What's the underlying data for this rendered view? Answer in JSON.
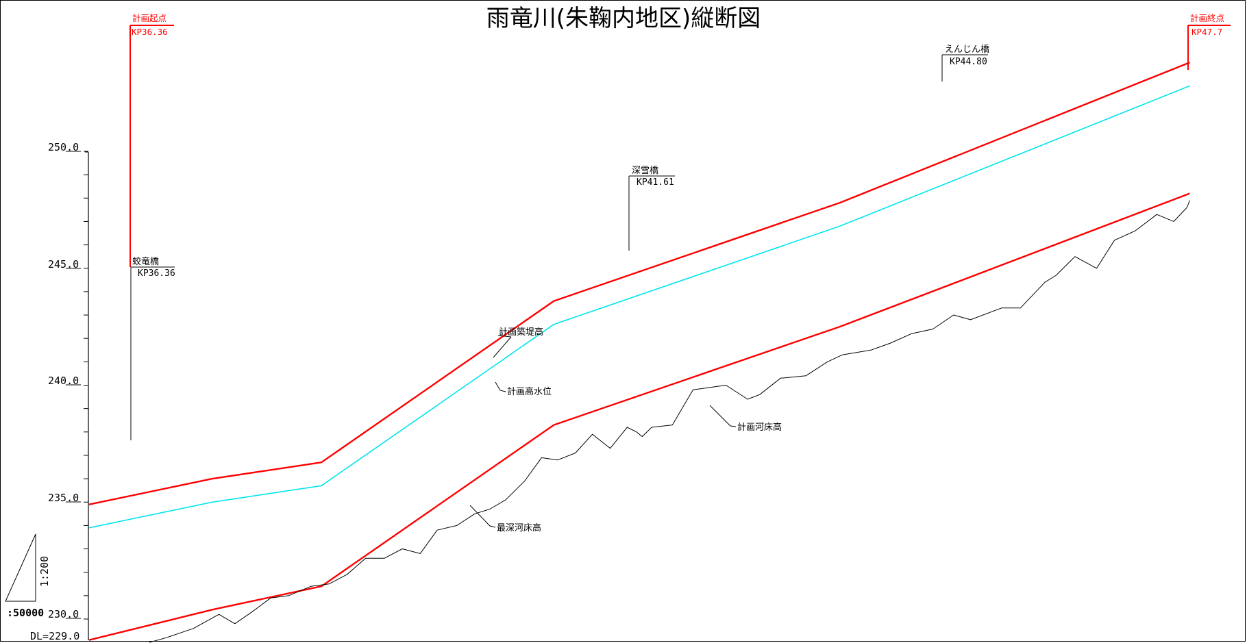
{
  "title": "雨竜川(朱鞠内地区)縦断図",
  "colors": {
    "plan": "#ff0000",
    "water": "#00e5ee",
    "bed": "#000000"
  },
  "datum_label": "DL=229.0",
  "scale": {
    "vertical": "1:200",
    "horizontal": ":50000"
  },
  "y_axis": {
    "ticks": [
      "250.0",
      "245.0",
      "240.0",
      "235.0",
      "230.0"
    ]
  },
  "start_marker": {
    "label": "計画起点",
    "kp": "KP36.36"
  },
  "end_marker": {
    "label": "計画終点",
    "kp": "KP47.7"
  },
  "bridges": [
    {
      "name": "蛟竜橋",
      "kp": "KP36.36"
    },
    {
      "name": "深雪橋",
      "kp": "KP41.61"
    },
    {
      "name": "えんじん橋",
      "kp": "KP44.80"
    }
  ],
  "line_labels": {
    "levee": "計画築堤高",
    "hwl": "計画高水位",
    "plan_bed": "計画河床高",
    "deep_bed": "最深河床高"
  },
  "chart_data": {
    "type": "line",
    "title": "雨竜川(朱鞠内地区)縦断図",
    "ylim": [
      229.0,
      250.0
    ],
    "x_unit": "KP",
    "series": [
      {
        "name": "計画築堤高",
        "color": "#ff0000",
        "x": [
          36.0,
          37.31,
          38.47,
          40.94,
          43.98,
          47.7
        ],
        "y": [
          234.9,
          236.0,
          236.7,
          243.6,
          247.8,
          253.8
        ]
      },
      {
        "name": "計画高水位",
        "color": "#00e5ee",
        "x": [
          36.0,
          37.31,
          38.47,
          40.94,
          43.98,
          47.7
        ],
        "y": [
          233.9,
          235.0,
          235.7,
          242.6,
          246.8,
          252.8
        ]
      },
      {
        "name": "計画河床高",
        "color": "#ff0000",
        "x": [
          36.0,
          37.31,
          38.47,
          40.94,
          43.98,
          47.7
        ],
        "y": [
          229.1,
          230.4,
          231.4,
          238.3,
          242.5,
          248.2
        ]
      },
      {
        "name": "最深河床高",
        "color": "#000000",
        "x": [
          36.64,
          36.82,
          37.11,
          37.38,
          37.55,
          37.73,
          37.93,
          38.12,
          38.36,
          38.55,
          38.74,
          38.94,
          39.14,
          39.33,
          39.52,
          39.7,
          39.91,
          40.1,
          40.26,
          40.43,
          40.63,
          40.81,
          40.98,
          41.17,
          41.35,
          41.54,
          41.72,
          41.82,
          41.88,
          41.98,
          42.2,
          42.42,
          42.77,
          43.0,
          43.13,
          43.35,
          43.62,
          43.85,
          44.01,
          44.31,
          44.52,
          44.74,
          44.97,
          45.19,
          45.37,
          45.7,
          45.9,
          46.16,
          46.28,
          46.48,
          46.71,
          46.9,
          47.12,
          47.35,
          47.53,
          47.67,
          47.7
        ],
        "y": [
          229.0,
          229.2,
          229.6,
          230.2,
          229.8,
          230.3,
          230.9,
          231.0,
          231.4,
          231.5,
          231.9,
          232.6,
          232.6,
          233.0,
          232.8,
          233.8,
          234.0,
          234.5,
          234.7,
          235.1,
          235.9,
          236.9,
          236.8,
          237.1,
          237.9,
          237.3,
          238.2,
          238.0,
          237.8,
          238.2,
          238.3,
          239.8,
          240.0,
          239.4,
          239.6,
          240.3,
          240.4,
          241.0,
          241.3,
          241.5,
          241.8,
          242.2,
          242.4,
          243.0,
          242.8,
          243.3,
          243.3,
          244.4,
          244.7,
          245.5,
          245.0,
          246.2,
          246.6,
          247.3,
          247.0,
          247.6,
          247.9
        ]
      }
    ]
  }
}
